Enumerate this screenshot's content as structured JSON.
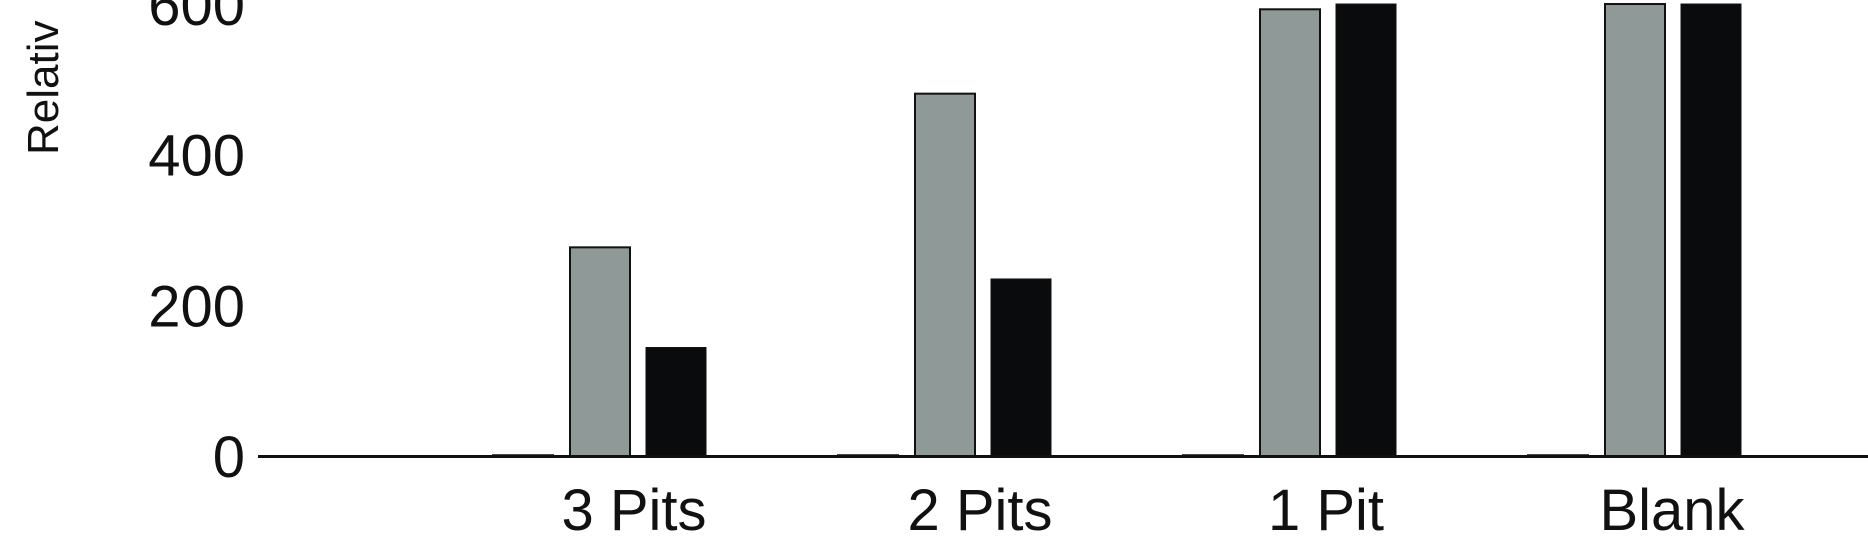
{
  "chart_data": {
    "type": "bar",
    "categories": [
      "3 Pits",
      "2 Pits",
      "1 Pit",
      "Blank"
    ],
    "ylabel": "Relativ",
    "ylim": [
      0,
      600
    ],
    "yticks": [
      0,
      200,
      400,
      600
    ],
    "series": [
      {
        "values": [
          1,
          1,
          1,
          1
        ],
        "color": "#8f9a98"
      },
      {
        "values": [
          277,
          481,
          593,
          600
        ],
        "color": "#8f9a98"
      },
      {
        "values": [
          144,
          235,
          600,
          600
        ],
        "color": "#0a0b0c"
      }
    ]
  }
}
